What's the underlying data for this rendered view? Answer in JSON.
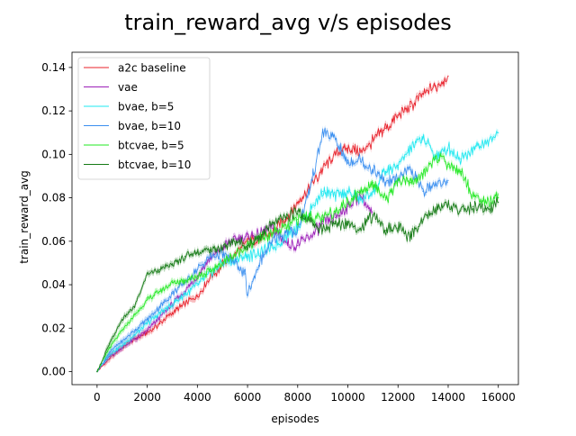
{
  "chart_data": {
    "type": "line",
    "title": "train_reward_avg v/s episodes",
    "xlabel": "episodes",
    "ylabel": "train_reward_avg",
    "xlim": [
      -1000,
      16800
    ],
    "ylim": [
      -0.006,
      0.147
    ],
    "xticks": [
      0,
      2000,
      4000,
      6000,
      8000,
      10000,
      12000,
      14000,
      16000
    ],
    "xtick_labels": [
      "0",
      "2000",
      "4000",
      "6000",
      "8000",
      "10000",
      "12000",
      "14000",
      "16000"
    ],
    "yticks": [
      0.0,
      0.02,
      0.04,
      0.06,
      0.08,
      0.1,
      0.12,
      0.14
    ],
    "ytick_labels": [
      "0.00",
      "0.02",
      "0.04",
      "0.06",
      "0.08",
      "0.10",
      "0.12",
      "0.14"
    ],
    "grid": false,
    "legend_position": "top-left",
    "series": [
      {
        "name": "a2c baseline",
        "color": "#e8202a",
        "x": [
          0,
          500,
          1000,
          1500,
          2000,
          2500,
          3000,
          3500,
          4000,
          4500,
          5000,
          5500,
          6000,
          6500,
          7000,
          7500,
          8000,
          8500,
          9000,
          9500,
          10000,
          10500,
          11000,
          11500,
          12000,
          12500,
          13000,
          13500,
          14000
        ],
        "y": [
          0.0,
          0.006,
          0.011,
          0.015,
          0.018,
          0.022,
          0.027,
          0.031,
          0.035,
          0.043,
          0.049,
          0.054,
          0.06,
          0.061,
          0.064,
          0.07,
          0.078,
          0.085,
          0.093,
          0.1,
          0.103,
          0.101,
          0.106,
          0.112,
          0.118,
          0.122,
          0.128,
          0.131,
          0.136
        ]
      },
      {
        "name": "vae",
        "color": "#9c1fb8",
        "x": [
          0,
          500,
          1000,
          1500,
          2000,
          2500,
          3000,
          3500,
          4000,
          4500,
          5000,
          5500,
          6000,
          6500,
          7000,
          7500,
          8000,
          8500,
          9000,
          9500,
          10000,
          10500,
          11000
        ],
        "y": [
          0.0,
          0.007,
          0.011,
          0.015,
          0.019,
          0.025,
          0.031,
          0.037,
          0.044,
          0.052,
          0.057,
          0.061,
          0.062,
          0.063,
          0.066,
          0.06,
          0.058,
          0.062,
          0.068,
          0.071,
          0.076,
          0.081,
          0.072
        ]
      },
      {
        "name": "bvae, b=5",
        "color": "#1ee8f0",
        "x": [
          0,
          500,
          1000,
          1500,
          2000,
          2500,
          3000,
          4000,
          5000,
          6000,
          7000,
          8000,
          8500,
          9000,
          9500,
          10000,
          10500,
          11000,
          11500,
          12000,
          12500,
          13000,
          13500,
          14000,
          14500,
          15000,
          15500,
          16000
        ],
        "y": [
          0.0,
          0.008,
          0.012,
          0.017,
          0.022,
          0.027,
          0.031,
          0.04,
          0.05,
          0.053,
          0.057,
          0.067,
          0.074,
          0.083,
          0.081,
          0.083,
          0.079,
          0.083,
          0.092,
          0.095,
          0.103,
          0.108,
          0.099,
          0.103,
          0.098,
          0.103,
          0.105,
          0.11
        ]
      },
      {
        "name": "bvae, b=10",
        "color": "#3a8ff0",
        "x": [
          0,
          500,
          1000,
          1500,
          2000,
          2500,
          3000,
          3500,
          4000,
          4500,
          5000,
          5500,
          5900,
          6000,
          6500,
          7000,
          7500,
          8000,
          8500,
          9000,
          9500,
          10000,
          10500,
          11000,
          11500,
          12000,
          12500,
          13000,
          13500,
          14000
        ],
        "y": [
          0.0,
          0.009,
          0.014,
          0.019,
          0.024,
          0.03,
          0.036,
          0.041,
          0.047,
          0.053,
          0.054,
          0.05,
          0.045,
          0.035,
          0.051,
          0.06,
          0.064,
          0.065,
          0.085,
          0.11,
          0.107,
          0.096,
          0.098,
          0.093,
          0.087,
          0.089,
          0.093,
          0.083,
          0.086,
          0.088
        ]
      },
      {
        "name": "btcvae, b=5",
        "color": "#22e822",
        "x": [
          0,
          500,
          1000,
          1500,
          2000,
          2500,
          3000,
          3500,
          4000,
          4500,
          5000,
          5500,
          6000,
          6500,
          7000,
          7500,
          8000,
          8500,
          9000,
          9500,
          10000,
          10500,
          11000,
          11500,
          12000,
          12500,
          13000,
          13500,
          14000,
          14500,
          15000,
          15500,
          16000
        ],
        "y": [
          0.0,
          0.011,
          0.019,
          0.026,
          0.033,
          0.037,
          0.041,
          0.042,
          0.044,
          0.046,
          0.05,
          0.054,
          0.058,
          0.061,
          0.064,
          0.066,
          0.07,
          0.072,
          0.07,
          0.074,
          0.078,
          0.083,
          0.087,
          0.079,
          0.088,
          0.087,
          0.091,
          0.099,
          0.096,
          0.092,
          0.081,
          0.078,
          0.08
        ]
      },
      {
        "name": "btcvae, b=10",
        "color": "#157a15",
        "x": [
          0,
          500,
          1000,
          1500,
          2000,
          2500,
          3000,
          3500,
          4000,
          4500,
          5000,
          5500,
          6000,
          6500,
          7000,
          7500,
          8000,
          8500,
          9000,
          9500,
          10000,
          10500,
          11000,
          11500,
          12000,
          12500,
          13000,
          13500,
          14000,
          14500,
          15000,
          15500,
          16000
        ],
        "y": [
          0.0,
          0.013,
          0.024,
          0.03,
          0.045,
          0.047,
          0.049,
          0.053,
          0.055,
          0.056,
          0.057,
          0.06,
          0.058,
          0.062,
          0.068,
          0.071,
          0.074,
          0.069,
          0.065,
          0.068,
          0.069,
          0.066,
          0.072,
          0.065,
          0.066,
          0.062,
          0.07,
          0.075,
          0.077,
          0.074,
          0.076,
          0.075,
          0.078
        ]
      }
    ]
  }
}
